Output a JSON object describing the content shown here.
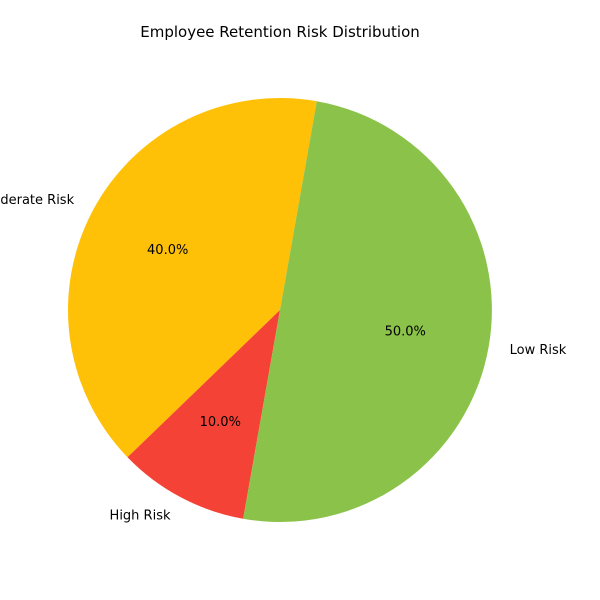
{
  "chart_data": {
    "type": "pie",
    "title": "Employee Retention Risk Distribution",
    "categories": [
      "Moderate Risk",
      "High Risk",
      "Low Risk"
    ],
    "values": [
      40,
      10,
      50
    ],
    "percent_labels": [
      "40.0%",
      "10.0%",
      "50.0%"
    ],
    "colors": [
      "#ffc107",
      "#f44336",
      "#8bc34a"
    ],
    "legend": false
  }
}
